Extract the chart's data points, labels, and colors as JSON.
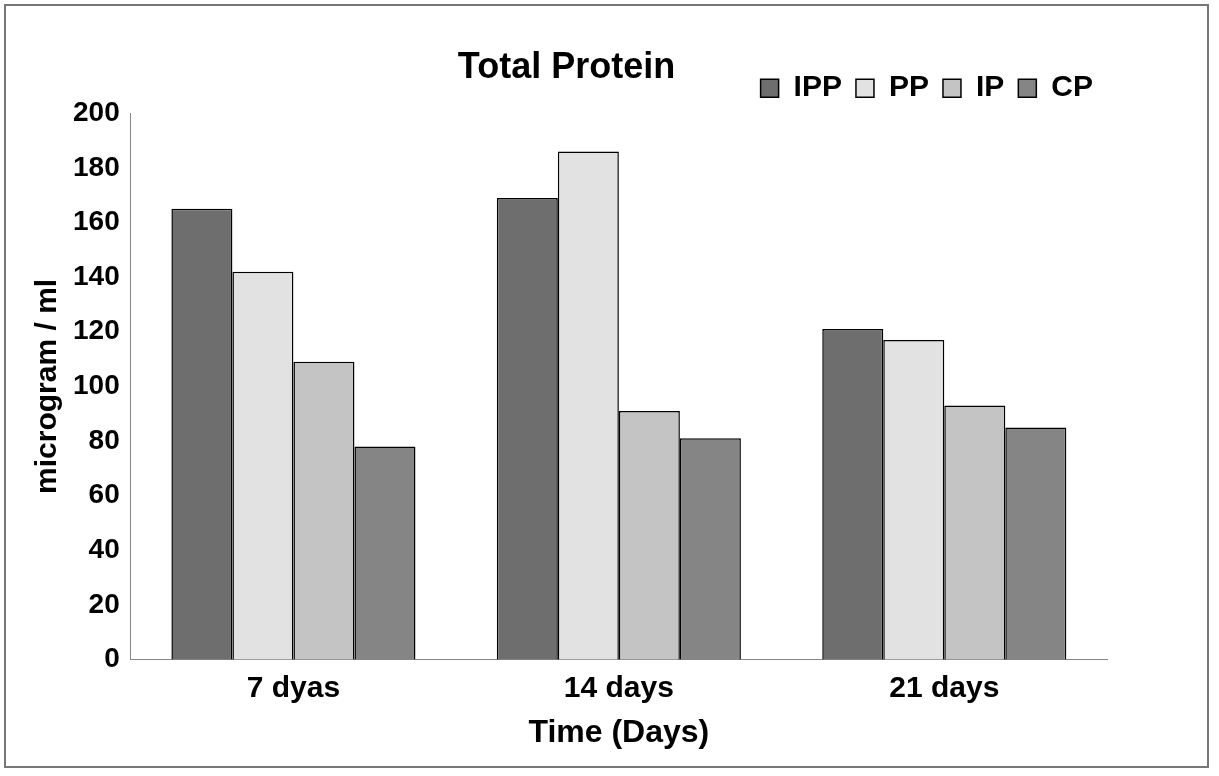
{
  "chart_data": {
    "type": "bar",
    "title": "Total Protein",
    "xlabel": "Time (Days)",
    "ylabel": "microgram / ml",
    "categories": [
      "7 dyas",
      "14 days",
      "21 days"
    ],
    "series": [
      {
        "name": "IPP",
        "color": "#6e6e6e",
        "values": [
          165,
          169,
          121
        ]
      },
      {
        "name": "PP",
        "color": "#e2e2e2",
        "values": [
          142,
          186,
          117
        ]
      },
      {
        "name": "IP",
        "color": "#c4c4c4",
        "values": [
          109,
          91,
          93
        ]
      },
      {
        "name": "CP",
        "color": "#858585",
        "values": [
          78,
          81,
          85
        ]
      }
    ],
    "ylim": [
      0,
      200
    ],
    "yticks": [
      0,
      20,
      40,
      60,
      80,
      100,
      120,
      140,
      160,
      180,
      200
    ],
    "grid": false,
    "legend": "top right"
  }
}
